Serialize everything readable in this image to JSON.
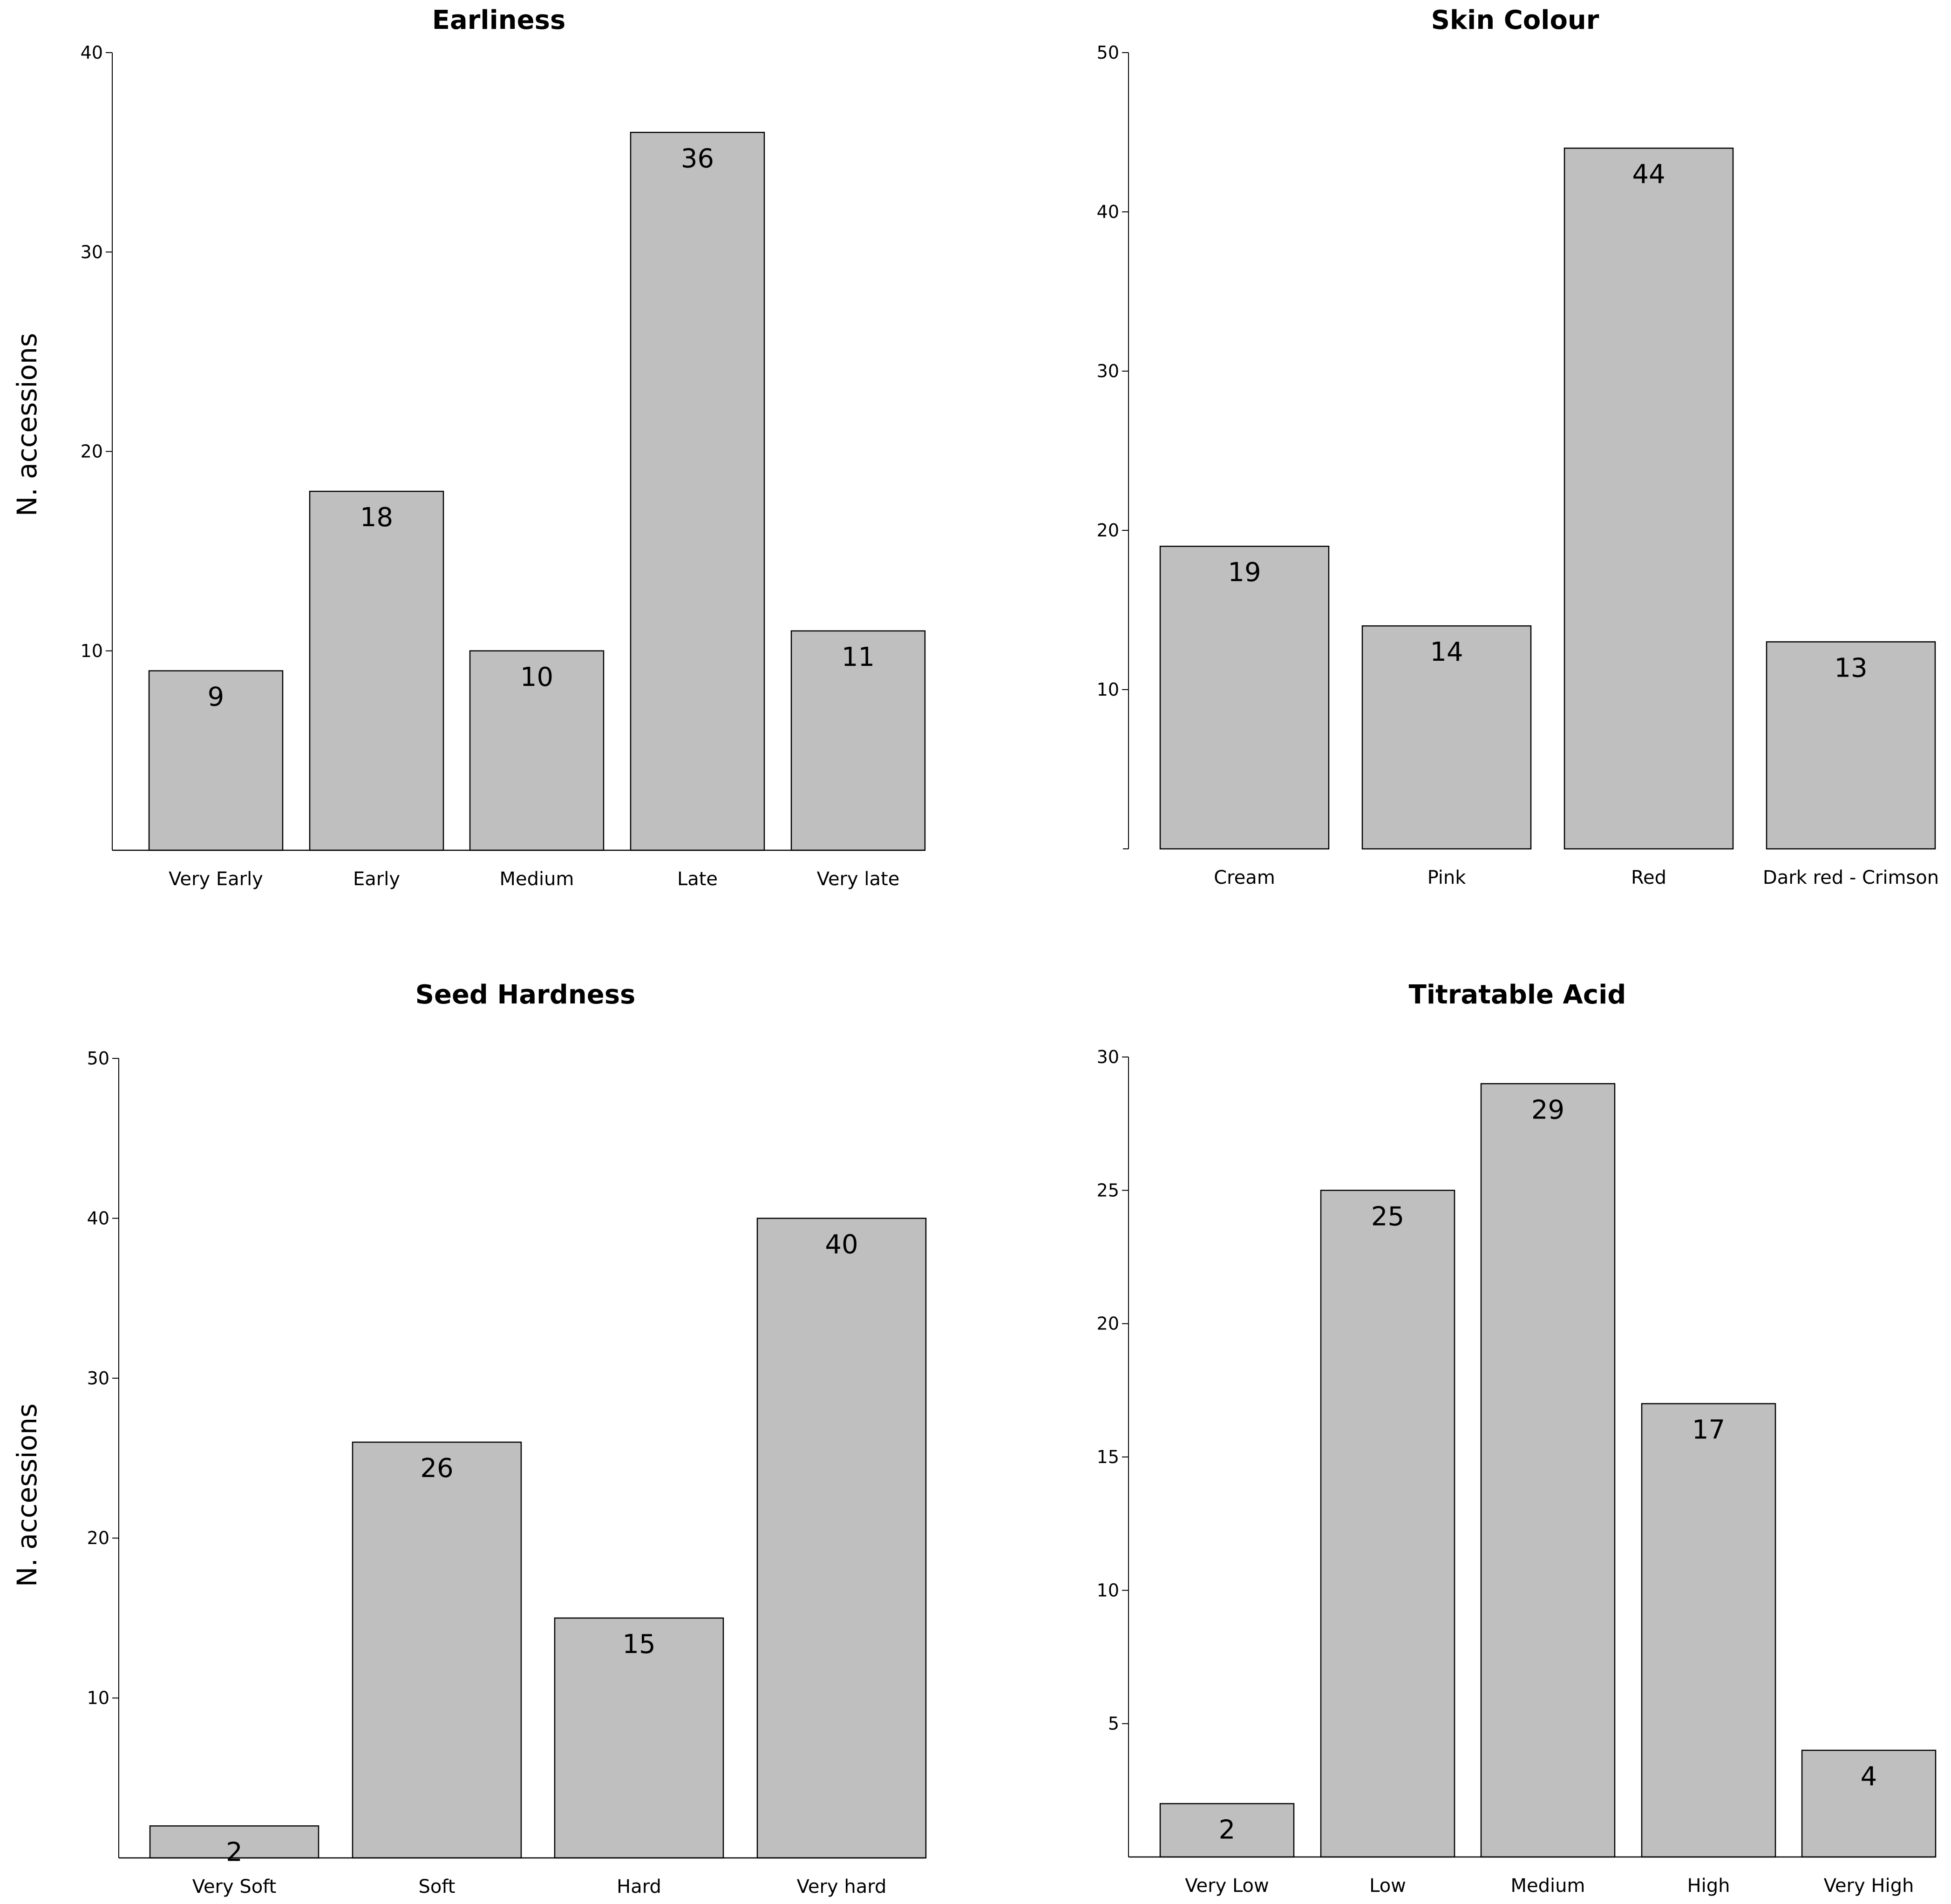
{
  "colors": {
    "bar_fill": "#bfbfbf",
    "bar_stroke": "#000000",
    "axis": "#000000"
  },
  "chart_data": [
    {
      "type": "bar",
      "title": "Earliness",
      "ylabel": "N. accessions",
      "xlabel": "",
      "categories": [
        "Very Early",
        "Early",
        "Medium",
        "Late",
        "Very late"
      ],
      "values": [
        9,
        18,
        10,
        36,
        11
      ],
      "value_labels": [
        "9",
        "18",
        "10",
        "36",
        "11"
      ],
      "ylim": [
        0,
        40
      ],
      "yticks": [
        10,
        20,
        30,
        40
      ],
      "ytick_labels": [
        "10",
        "20",
        "30",
        "40"
      ],
      "grid": false
    },
    {
      "type": "bar",
      "title": "Skin Colour",
      "ylabel": "",
      "xlabel": "",
      "categories": [
        "Cream",
        "Pink",
        "Red",
        "Dark red - Crimson"
      ],
      "values": [
        19,
        14,
        44,
        13
      ],
      "value_labels": [
        "19",
        "14",
        "44",
        "13"
      ],
      "ylim": [
        0,
        50
      ],
      "yticks": [
        10,
        20,
        30,
        40,
        50
      ],
      "ytick_labels": [
        "10",
        "20",
        "30",
        "40",
        "50"
      ],
      "grid": false
    },
    {
      "type": "bar",
      "title": "Seed Hardness",
      "ylabel": "N. accessions",
      "xlabel": "",
      "categories": [
        "Very Soft",
        "Soft",
        "Hard",
        "Very hard"
      ],
      "values": [
        2,
        26,
        15,
        40
      ],
      "value_labels": [
        "2",
        "26",
        "15",
        "40"
      ],
      "ylim": [
        0,
        50
      ],
      "yticks": [
        10,
        20,
        30,
        40,
        50
      ],
      "ytick_labels": [
        "10",
        "20",
        "30",
        "40",
        "50"
      ],
      "grid": false
    },
    {
      "type": "bar",
      "title": "Titratable Acid",
      "ylabel": "",
      "xlabel": "",
      "categories": [
        "Very Low",
        "Low",
        "Medium",
        "High",
        "Very High"
      ],
      "values": [
        2,
        25,
        29,
        17,
        4
      ],
      "value_labels": [
        "2",
        "25",
        "29",
        "17",
        "4"
      ],
      "ylim": [
        0,
        30
      ],
      "yticks": [
        5,
        10,
        15,
        20,
        25,
        30
      ],
      "ytick_labels": [
        "5",
        "10",
        "15",
        "20",
        "25",
        "30"
      ],
      "grid": false
    }
  ]
}
